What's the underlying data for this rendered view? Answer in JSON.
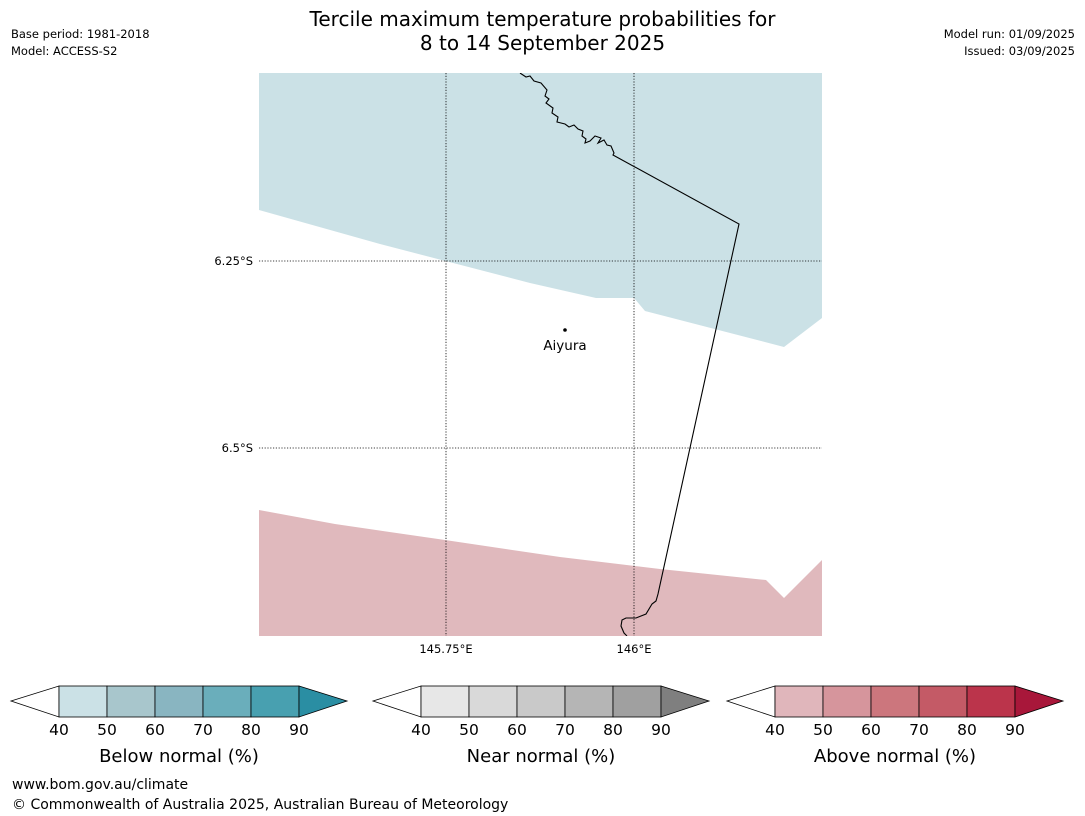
{
  "header": {
    "title_line1": "Tercile maximum temperature probabilities for",
    "title_line2": "8 to 14 September 2025",
    "base_period": "Base period: 1981-2018",
    "model": "Model: ACCESS-S2",
    "model_run": "Model run: 01/09/2025",
    "issued": "Issued: 03/09/2025"
  },
  "map": {
    "lat_labels": [
      "6.25°S",
      "6.5°S"
    ],
    "lon_labels": [
      "145.75°E",
      "146°E"
    ],
    "place_label": "Aiyura",
    "colors": {
      "below_normal_40_50": "#cbe1e6",
      "above_normal_40_50": "#e0b9bd",
      "coastline": "#000000",
      "gridline": "#000000"
    }
  },
  "legends": [
    {
      "title": "Below normal (%)",
      "ticks": [
        "40",
        "50",
        "60",
        "70",
        "80",
        "90"
      ],
      "colors": [
        "#ffffff",
        "#cbe1e6",
        "#a8c6cc",
        "#89b5c1",
        "#6aaebb",
        "#48a0b0",
        "#2a8ea3"
      ]
    },
    {
      "title": "Near normal (%)",
      "ticks": [
        "40",
        "50",
        "60",
        "70",
        "80",
        "90"
      ],
      "colors": [
        "#ffffff",
        "#e7e7e7",
        "#d9d9d9",
        "#c9c9c9",
        "#b5b5b5",
        "#a0a0a0",
        "#7f7f7f"
      ]
    },
    {
      "title": "Above normal (%)",
      "ticks": [
        "40",
        "50",
        "60",
        "70",
        "80",
        "90"
      ],
      "colors": [
        "#ffffff",
        "#e0b6bb",
        "#d6959c",
        "#cc767d",
        "#c45a66",
        "#bb344b",
        "#a8173a"
      ]
    }
  ],
  "footer": {
    "website": "www.bom.gov.au/climate",
    "copyright": "© Commonwealth of Australia 2025, Australian Bureau of Meteorology"
  }
}
